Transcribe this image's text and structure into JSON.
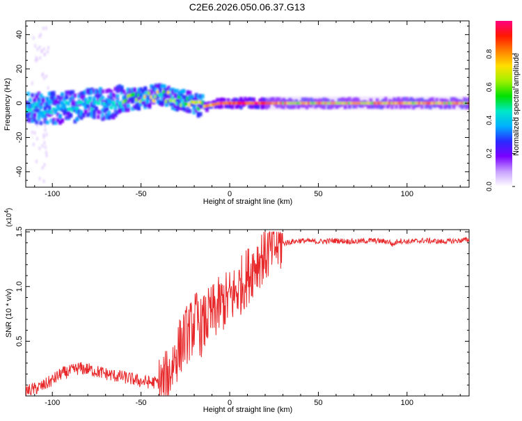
{
  "page": {
    "title": "C2E6.2026.050.06.37.G13"
  },
  "colors": {
    "snr_line": "#e8292b",
    "axis": "#000000",
    "background": "#ffffff"
  },
  "chart_data": [
    {
      "type": "heatmap",
      "title": "C2E6.2026.050.06.37.G13",
      "xlabel": "Height of straight line (km)",
      "ylabel": "Frequency (Hz)",
      "xlim": [
        -115,
        135
      ],
      "ylim": [
        -49,
        48
      ],
      "xticks": [
        -100,
        -50,
        0,
        50,
        100
      ],
      "xtick_labels": [
        "-100",
        "-50",
        "0",
        "50",
        "100"
      ],
      "yticks": [
        -40,
        -20,
        0,
        20,
        40
      ],
      "ytick_labels": [
        "-40",
        "-20",
        "0",
        "20",
        "40"
      ],
      "ridge": {
        "x": [
          -115,
          -100,
          -90,
          -80,
          -70,
          -60,
          -50,
          -40,
          -35,
          -30,
          -25,
          -20,
          -15,
          -10,
          -5,
          0,
          5,
          10,
          20,
          40,
          60,
          80,
          100,
          120,
          135
        ],
        "y": [
          -3,
          -3,
          -2,
          -1,
          0,
          1.5,
          3,
          5,
          4,
          2,
          1,
          -1,
          -2,
          -1,
          0,
          0,
          0,
          0,
          0,
          0,
          0,
          0,
          0,
          0,
          0
        ]
      },
      "colorbar": {
        "label": "Normalized spectral amplitude",
        "range": [
          0,
          1
        ],
        "ticks": [
          0.0,
          0.2,
          0.4,
          0.6,
          0.8
        ],
        "tick_labels": [
          "0.0",
          "0.2",
          "0.4",
          "0.6",
          "0.8"
        ],
        "colors": [
          "#ffffff",
          "#c8a0ff",
          "#7a00ff",
          "#2a2aff",
          "#00b0ff",
          "#00e8c8",
          "#00e000",
          "#a0f000",
          "#ffe000",
          "#ff8000",
          "#ff1800",
          "#ff0080"
        ]
      },
      "grid": false
    },
    {
      "type": "line",
      "xlabel": "Height of straight line (km)",
      "ylabel": "SNR (10 * v/v)",
      "y_multiplier_label": "(x10",
      "y_multiplier_exp": "4",
      "y_multiplier_close": ")",
      "xlim": [
        -115,
        135
      ],
      "ylim": [
        0,
        1.52
      ],
      "xticks": [
        -100,
        -50,
        0,
        50,
        100
      ],
      "xtick_labels": [
        "-100",
        "-50",
        "0",
        "50",
        "100"
      ],
      "yticks": [
        0.5,
        1.0,
        1.5
      ],
      "ytick_labels": [
        "0.5",
        "1.0",
        "1.5"
      ],
      "series": [
        {
          "x": [
            -115,
            -110,
            -105,
            -100,
            -95,
            -90,
            -85,
            -80,
            -75,
            -70,
            -65,
            -60,
            -55,
            -50,
            -45,
            -40,
            -37,
            -34,
            -31,
            -28,
            -25,
            -22,
            -19,
            -16,
            -13,
            -10,
            -7,
            -4,
            -1,
            2,
            5,
            8,
            11,
            14,
            17,
            20,
            23,
            26,
            29,
            32,
            35,
            40,
            50,
            60,
            70,
            80,
            90,
            92,
            95,
            100,
            110,
            120,
            130,
            135
          ],
          "values": [
            0.02,
            0.04,
            0.07,
            0.12,
            0.18,
            0.2,
            0.23,
            0.22,
            0.2,
            0.18,
            0.16,
            0.15,
            0.13,
            0.11,
            0.1,
            0.1,
            0.12,
            0.2,
            0.35,
            0.45,
            0.55,
            0.6,
            0.7,
            0.62,
            0.7,
            0.75,
            0.8,
            0.85,
            0.88,
            0.92,
            0.98,
            1.05,
            1.12,
            1.2,
            1.26,
            1.3,
            1.33,
            1.37,
            1.39,
            1.4,
            1.41,
            1.42,
            1.41,
            1.42,
            1.41,
            1.42,
            1.41,
            1.38,
            1.42,
            1.41,
            1.42,
            1.41,
            1.42,
            1.43
          ]
        }
      ],
      "grid": false
    }
  ]
}
